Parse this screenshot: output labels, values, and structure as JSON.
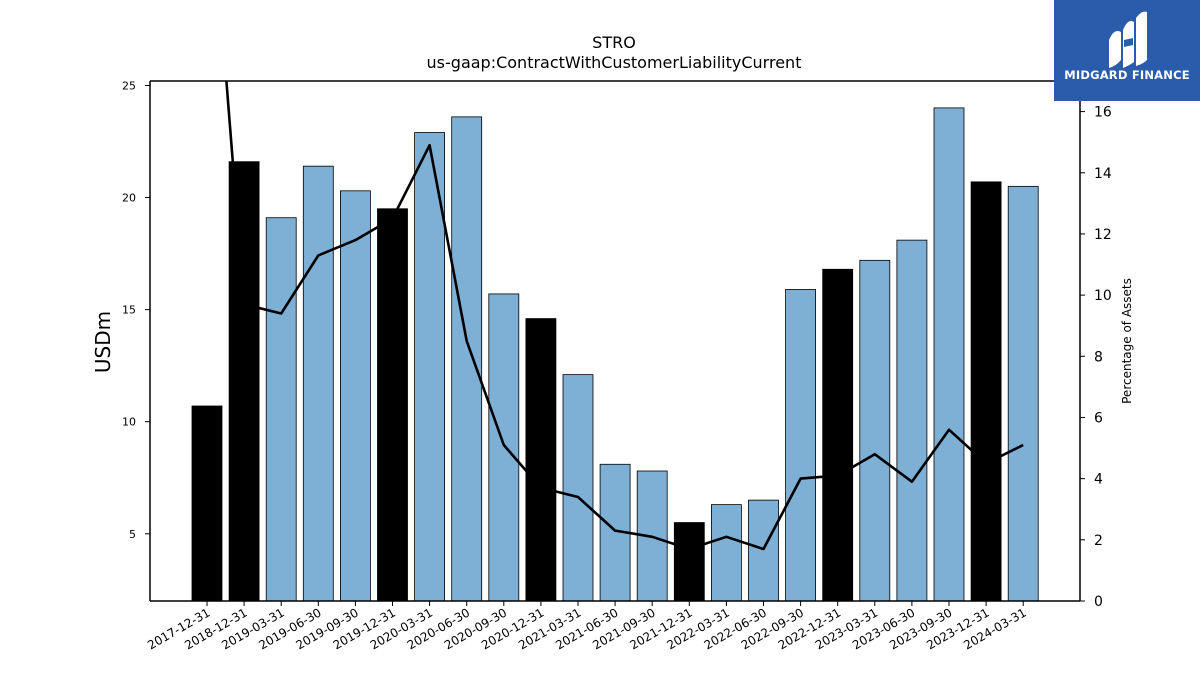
{
  "chart_data": {
    "type": "bar",
    "title": "STRO",
    "subtitle": "us-gaap:ContractWithCustomerLiabilityCurrent",
    "ylabel": "USDm",
    "y2label": "Percentage of Assets",
    "ylim": [
      2,
      25.2
    ],
    "y2lim": [
      0,
      17
    ],
    "yticks": [
      5,
      10,
      15,
      20,
      25
    ],
    "y2ticks": [
      0,
      2,
      4,
      6,
      8,
      10,
      12,
      14,
      16
    ],
    "categories": [
      "2017-12-31",
      "2018-12-31",
      "2019-03-31",
      "2019-06-30",
      "2019-09-30",
      "2019-12-31",
      "2020-03-31",
      "2020-06-30",
      "2020-09-30",
      "2020-12-31",
      "2021-03-31",
      "2021-06-30",
      "2021-09-30",
      "2021-12-31",
      "2022-03-31",
      "2022-06-30",
      "2022-09-30",
      "2022-12-31",
      "2023-03-31",
      "2023-06-30",
      "2023-09-30",
      "2023-12-31",
      "2024-03-31"
    ],
    "series": [
      {
        "kind": "bar",
        "values": [
          10.7,
          21.6,
          19.1,
          21.4,
          20.3,
          19.5,
          22.9,
          23.6,
          15.7,
          14.6,
          12.1,
          8.1,
          7.8,
          5.5,
          6.3,
          6.5,
          15.9,
          16.8,
          17.2,
          18.1,
          24.0,
          20.7,
          20.5
        ],
        "annual": [
          true,
          true,
          false,
          false,
          false,
          true,
          false,
          false,
          false,
          true,
          false,
          false,
          false,
          true,
          false,
          false,
          false,
          true,
          false,
          false,
          false,
          true,
          false
        ]
      },
      {
        "kind": "line",
        "axis": "right",
        "values": [
          25.0,
          9.7,
          9.4,
          11.3,
          11.8,
          12.5,
          14.9,
          8.5,
          5.1,
          3.7,
          3.4,
          2.3,
          2.1,
          1.7,
          2.1,
          1.7,
          4.0,
          4.1,
          4.8,
          3.9,
          5.6,
          4.5,
          5.1
        ]
      }
    ],
    "colors": {
      "quarterly_bar": "#7eafd4",
      "annual_bar": "#000000",
      "line": "#000000"
    },
    "grid": false
  },
  "logo": {
    "text": "MIDGARD FINANCE"
  }
}
